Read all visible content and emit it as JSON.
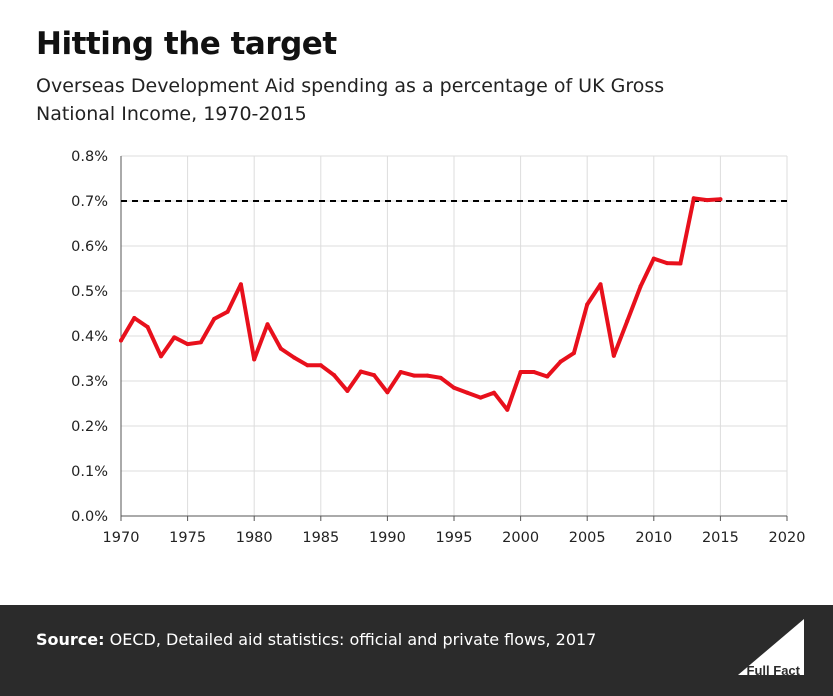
{
  "header": {
    "title": "Hitting the target",
    "subtitle": "Overseas Development Aid spending as a percentage of UK Gross National Income, 1970-2015"
  },
  "footer": {
    "source_label": "Source:",
    "source_text": "OECD, Detailed aid statistics: official and private flows, 2017",
    "logo_text": "Full Fact",
    "background_color": "#2b2b2b"
  },
  "chart_data": {
    "type": "line",
    "title": "Hitting the target",
    "subtitle": "Overseas Development Aid spending as a percentage of UK Gross National Income, 1970-2015",
    "xlabel": "",
    "ylabel": "",
    "xlim": [
      1970,
      2020
    ],
    "ylim": [
      0,
      0.8
    ],
    "grid": true,
    "legend": "none",
    "x_ticks": [
      "1970",
      "1975",
      "1980",
      "1985",
      "1990",
      "1995",
      "2000",
      "2005",
      "2010",
      "2015",
      "2020"
    ],
    "y_ticks": [
      "0.0%",
      "0.1%",
      "0.2%",
      "0.3%",
      "0.4%",
      "0.5%",
      "0.6%",
      "0.7%",
      "0.8%"
    ],
    "series": [
      {
        "color": "#e8101c",
        "x": [
          1970,
          1971,
          1972,
          1973,
          1974,
          1975,
          1976,
          1977,
          1978,
          1979,
          1980,
          1981,
          1982,
          1983,
          1984,
          1985,
          1986,
          1987,
          1988,
          1989,
          1990,
          1991,
          1992,
          1993,
          1994,
          1995,
          1996,
          1997,
          1998,
          1999,
          2000,
          2001,
          2002,
          2003,
          2004,
          2005,
          2006,
          2007,
          2008,
          2009,
          2010,
          2011,
          2012,
          2013,
          2014,
          2015
        ],
        "values": [
          0.39,
          0.44,
          0.42,
          0.355,
          0.397,
          0.382,
          0.386,
          0.438,
          0.454,
          0.515,
          0.348,
          0.426,
          0.372,
          0.352,
          0.335,
          0.335,
          0.313,
          0.278,
          0.321,
          0.313,
          0.275,
          0.32,
          0.312,
          0.312,
          0.307,
          0.285,
          0.274,
          0.263,
          0.274,
          0.236,
          0.32,
          0.32,
          0.31,
          0.343,
          0.362,
          0.47,
          0.515,
          0.356,
          0.433,
          0.51,
          0.572,
          0.562,
          0.561,
          0.706,
          0.702,
          0.704
        ]
      }
    ],
    "reference_lines": [
      {
        "y": 0.7,
        "style": "dashed",
        "color": "#000000"
      }
    ]
  }
}
